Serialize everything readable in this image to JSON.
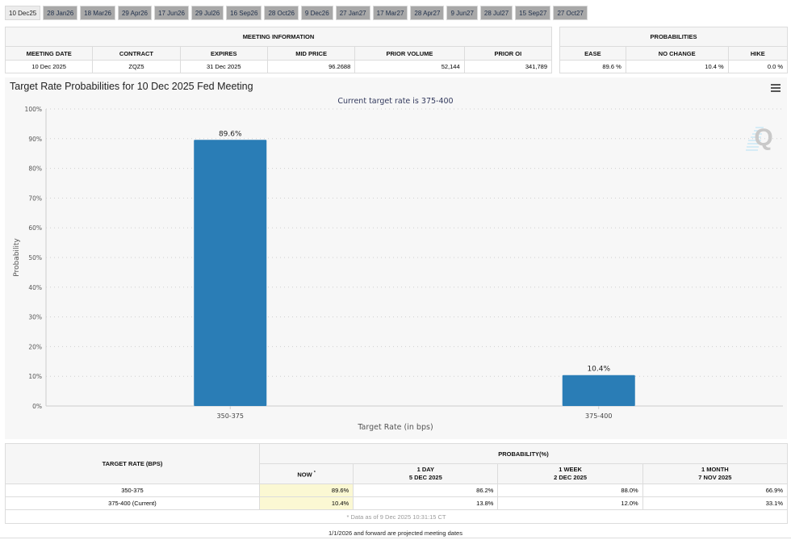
{
  "tabs": [
    {
      "label": "10 Dec25",
      "active": true
    },
    {
      "label": "28 Jan26"
    },
    {
      "label": "18 Mar26"
    },
    {
      "label": "29 Apr26"
    },
    {
      "label": "17 Jun26"
    },
    {
      "label": "29 Jul26"
    },
    {
      "label": "16 Sep26"
    },
    {
      "label": "28 Oct26"
    },
    {
      "label": "9 Dec26"
    },
    {
      "label": "27 Jan27"
    },
    {
      "label": "17 Mar27"
    },
    {
      "label": "28 Apr27"
    },
    {
      "label": "9 Jun27"
    },
    {
      "label": "28 Jul27"
    },
    {
      "label": "15 Sep27"
    },
    {
      "label": "27 Oct27"
    }
  ],
  "meeting_info": {
    "title": "MEETING INFORMATION",
    "headers": [
      "MEETING DATE",
      "CONTRACT",
      "EXPIRES",
      "MID PRICE",
      "PRIOR VOLUME",
      "PRIOR OI"
    ],
    "row": [
      "10 Dec 2025",
      "ZQZ5",
      "31 Dec 2025",
      "96.2688",
      "52,144",
      "341,789"
    ]
  },
  "probabilities": {
    "title": "PROBABILITIES",
    "headers": [
      "EASE",
      "NO CHANGE",
      "HIKE"
    ],
    "row": [
      "89.6 %",
      "10.4 %",
      "0.0 %"
    ]
  },
  "chart": {
    "menu_icon": "hamburger-menu-icon",
    "logo": "Q"
  },
  "chart_data": {
    "type": "bar",
    "title": "Target Rate Probabilities for 10 Dec 2025 Fed Meeting",
    "subtitle": "Current target rate is 375-400",
    "xlabel": "Target Rate (in bps)",
    "ylabel": "Probability",
    "categories": [
      "350-375",
      "375-400"
    ],
    "values": [
      89.6,
      10.4
    ],
    "data_labels": [
      "89.6%",
      "10.4%"
    ],
    "ylim": [
      0,
      100
    ],
    "yticks": [
      0,
      10,
      20,
      30,
      40,
      50,
      60,
      70,
      80,
      90,
      100
    ],
    "ytick_labels": [
      "0%",
      "10%",
      "20%",
      "30%",
      "40%",
      "50%",
      "60%",
      "70%",
      "80%",
      "90%",
      "100%"
    ],
    "grid": true,
    "bar_color": "#2a7db6"
  },
  "history": {
    "rate_header": "TARGET RATE (BPS)",
    "prob_header": "PROBABILITY(%)",
    "columns": [
      {
        "line1": "NOW",
        "sup": "*",
        "line2": ""
      },
      {
        "line1": "1 DAY",
        "line2": "5 DEC 2025"
      },
      {
        "line1": "1 WEEK",
        "line2": "2 DEC 2025"
      },
      {
        "line1": "1 MONTH",
        "line2": "7 NOV 2025"
      }
    ],
    "rows": [
      {
        "rate": "350-375",
        "values": [
          "89.6%",
          "86.2%",
          "88.0%",
          "66.9%"
        ]
      },
      {
        "rate": "375-400 (Current)",
        "values": [
          "10.4%",
          "13.8%",
          "12.0%",
          "33.1%"
        ]
      }
    ],
    "note": "* Data as of 9 Dec 2025 10:31:15 CT"
  },
  "footer": "1/1/2026 and forward are projected meeting dates"
}
